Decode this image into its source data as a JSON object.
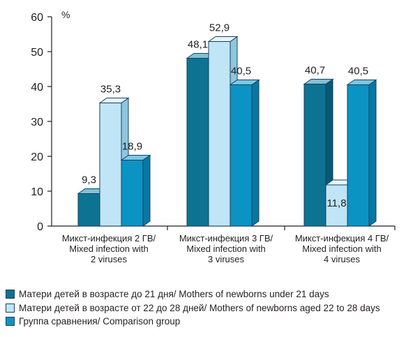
{
  "chart_data": {
    "type": "bar",
    "unit_label": "%",
    "ylim": [
      0,
      60
    ],
    "yticks": [
      0,
      10,
      20,
      30,
      40,
      50,
      60
    ],
    "categories": [
      [
        "Микст-инфекция 2 ГВ/",
        "Mixed infection with",
        "2 viruses"
      ],
      [
        "Микст-инфекция 3 ГВ/",
        "Mixed infection with",
        "3 viruses"
      ],
      [
        "Микст-инфекция 4 ГВ/",
        "Mixed infection with",
        "4 viruses"
      ]
    ],
    "series": [
      {
        "name": "Матери детей в возрасте до 21 дня/ Mothers of newborns under 21 days",
        "color": "#0d7393",
        "values": [
          9.3,
          48.1,
          40.7
        ],
        "labels": [
          "9,3",
          "48,1",
          "40,7"
        ]
      },
      {
        "name": "Матери детей в возрасте от 22 до 28 дней/ Mothers of newborns aged 22 to 28 days",
        "color": "#bfe5f7",
        "values": [
          35.3,
          52.9,
          11.8
        ],
        "labels": [
          "35,3",
          "52,9",
          "11,8"
        ]
      },
      {
        "name": "Группа сравнения/ Comparison group",
        "color": "#0b93c4",
        "values": [
          18.9,
          40.5,
          40.5
        ],
        "labels": [
          "18,9",
          "40,5",
          "40,5"
        ]
      }
    ],
    "legend_position": "bottom"
  }
}
